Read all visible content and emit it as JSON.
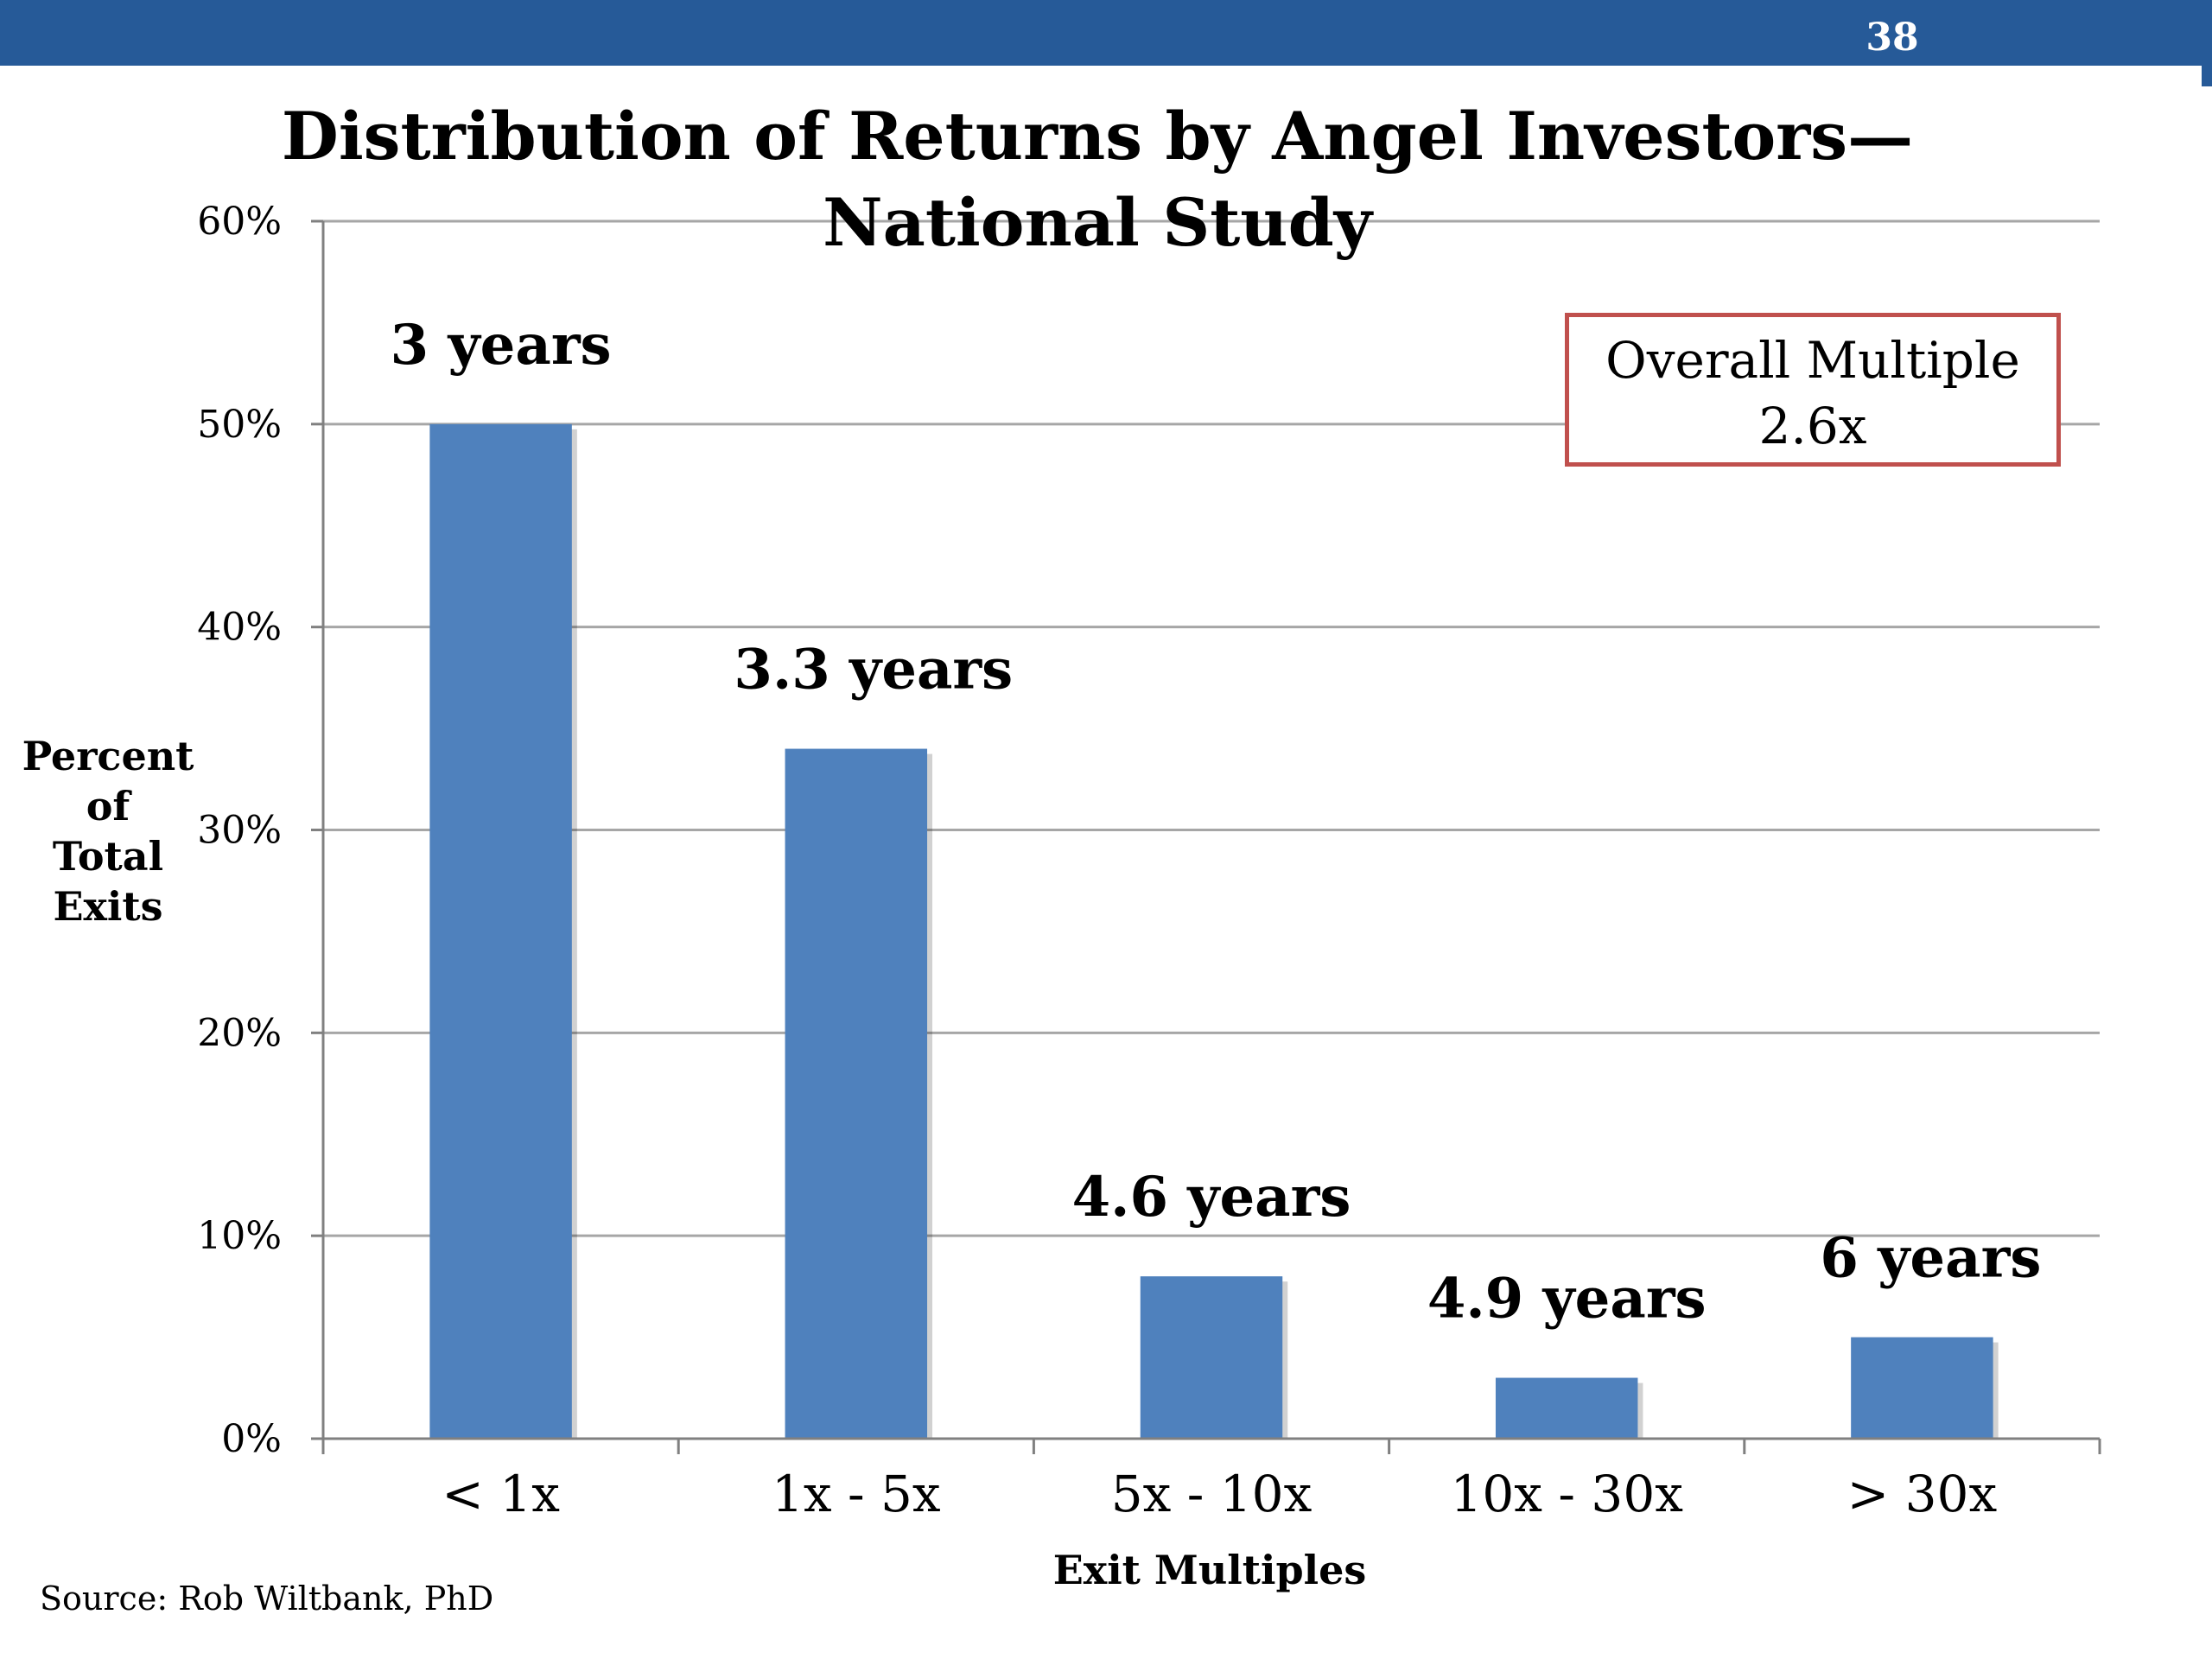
{
  "slide": {
    "number": "38",
    "source": "Source: Rob Wiltbank, PhD"
  },
  "annotation": {
    "line1": "Overall Multiple",
    "line2": "2.6x"
  },
  "colors": {
    "bar": "#4f81bd",
    "header": "#265a98",
    "annotation_border": "#c0504d",
    "grid": "#a6a6a6"
  },
  "chart_data": {
    "type": "bar",
    "title_line1": "Distribution of Returns by Angel Investors—",
    "title_line2": "National Study",
    "xlabel": "Exit Multiples",
    "ylabel_lines": [
      "Percent",
      "of",
      "Total",
      "Exits"
    ],
    "categories": [
      "< 1x",
      "1x - 5x",
      "5x - 10x",
      "10x - 30x",
      "> 30x"
    ],
    "values": [
      50,
      34,
      8,
      3,
      5
    ],
    "data_labels": [
      "3 years",
      "3.3 years",
      "4.6 years",
      "4.9 years",
      "6 years"
    ],
    "ylim": [
      0,
      60
    ],
    "yticks": [
      0,
      10,
      20,
      30,
      40,
      50,
      60
    ],
    "ytick_labels": [
      "0%",
      "10%",
      "20%",
      "30%",
      "40%",
      "50%",
      "60%"
    ],
    "grid": true,
    "legend": "none"
  }
}
